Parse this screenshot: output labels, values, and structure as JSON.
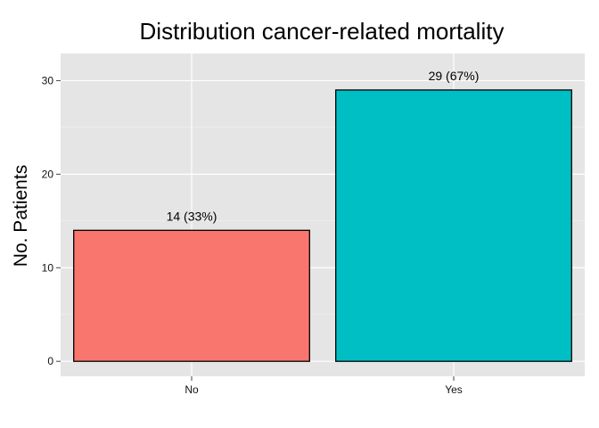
{
  "chart_data": {
    "type": "bar",
    "title": "Distribution cancer-related mortality",
    "xlabel": "",
    "ylabel": "No. Patients",
    "categories": [
      "No",
      "Yes"
    ],
    "values": [
      14,
      29
    ],
    "data_labels": [
      "14 (33%)",
      "29 (67%)"
    ],
    "colors": [
      "#F8766D",
      "#00BFC4"
    ],
    "yticks": [
      0,
      10,
      20,
      30
    ],
    "ylim": [
      -1.6,
      32.9
    ],
    "grid": true,
    "panel_color": "#E5E5E5",
    "bar_outline_color": "#000000"
  }
}
